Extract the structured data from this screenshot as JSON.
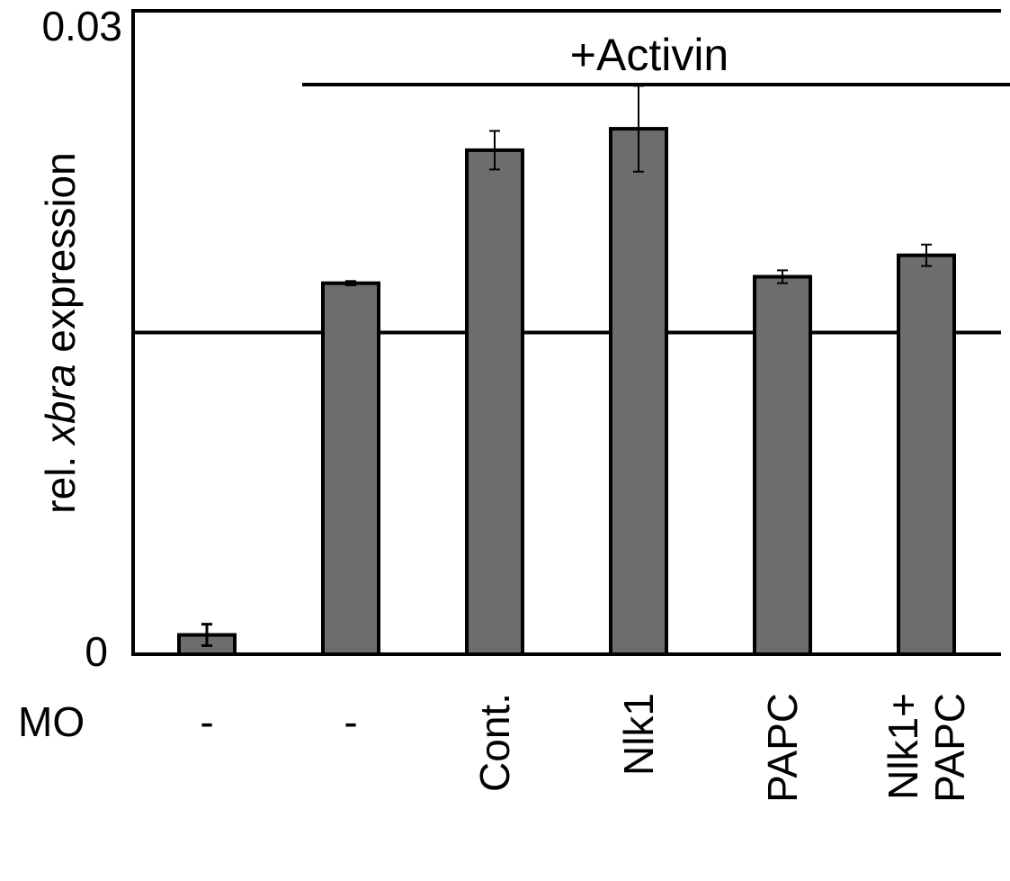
{
  "chart_data": {
    "type": "bar",
    "ylabel_parts": [
      "rel. ",
      "xbra",
      " expression"
    ],
    "ylim": [
      0,
      0.03
    ],
    "y_tick_labels": [
      "0",
      "0.03"
    ],
    "reference_line": 0.015,
    "treatment_label": "+Activin",
    "row_label": "MO",
    "categories": [
      {
        "lines": [
          "-"
        ],
        "value": 0.0009,
        "error": 0.0005
      },
      {
        "lines": [
          "-"
        ],
        "value": 0.0173,
        "error": 0.0001
      },
      {
        "lines": [
          "Cont."
        ],
        "value": 0.0235,
        "error": 0.0009
      },
      {
        "lines": [
          "Nlk1"
        ],
        "value": 0.0245,
        "error": 0.002
      },
      {
        "lines": [
          "PAPC"
        ],
        "value": 0.0176,
        "error": 0.0003
      },
      {
        "lines": [
          "Nlk1+",
          "PAPC"
        ],
        "value": 0.0186,
        "error": 0.0005
      }
    ],
    "bar_color": "#6d6d6d"
  }
}
